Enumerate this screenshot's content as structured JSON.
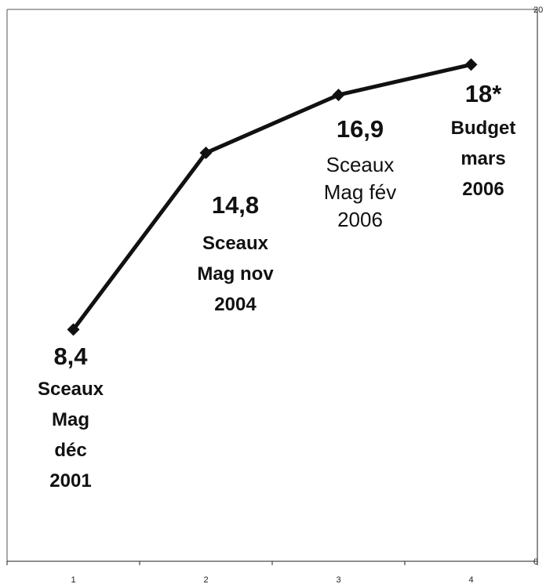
{
  "chart_data": {
    "type": "line",
    "title": "",
    "xlabel": "",
    "ylabel": "",
    "categories": [
      "1",
      "2",
      "3",
      "4"
    ],
    "x": [
      1,
      2,
      3,
      4
    ],
    "values": [
      8.4,
      14.8,
      16.9,
      18
    ],
    "ylim": [
      0,
      20
    ],
    "y_ticks": [
      "0",
      "20"
    ],
    "grid": false,
    "legend": "none",
    "line_color": "#111111",
    "marker": "diamond",
    "data_labels": [
      {
        "value": "8,4",
        "caption": [
          "Sceaux",
          "Mag",
          "déc",
          "2001"
        ],
        "caption_style": "bold"
      },
      {
        "value": "14,8",
        "caption": [
          "Sceaux",
          "Mag nov",
          "2004"
        ],
        "caption_style": "bold"
      },
      {
        "value": "16,9",
        "caption": [
          "Sceaux",
          "Mag fév",
          "2006"
        ],
        "caption_style": "regular"
      },
      {
        "value": "18*",
        "caption": [
          "Budget",
          "mars",
          "2006"
        ],
        "caption_style": "bold"
      }
    ]
  }
}
